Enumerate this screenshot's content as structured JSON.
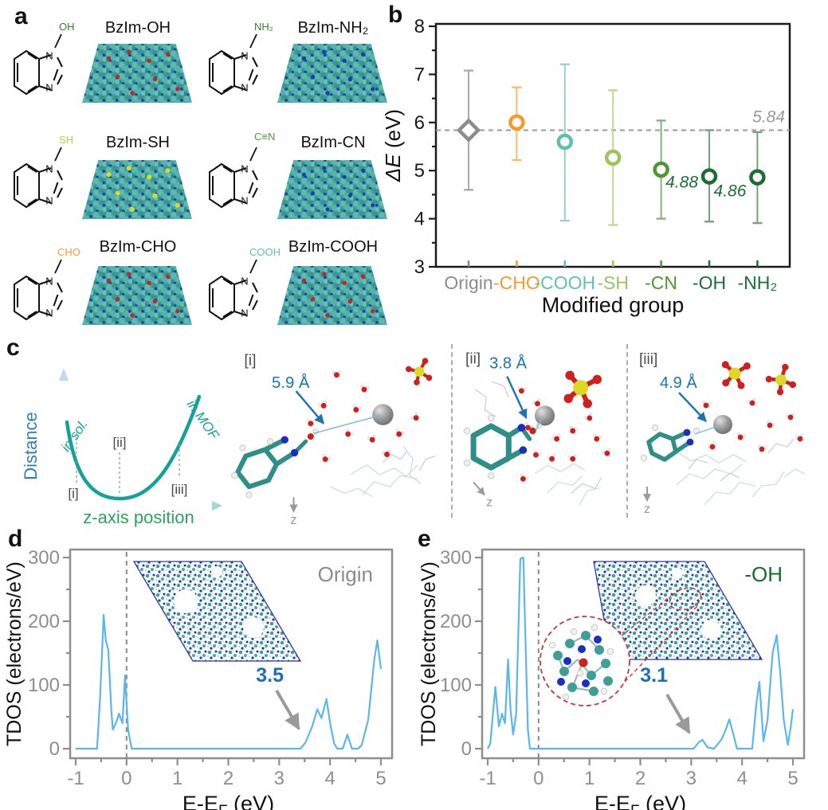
{
  "panel_a": {
    "label": "a",
    "molecules": [
      {
        "name": "BzIm-OH",
        "substituent": "OH",
        "sub_color": "#3a7d2c",
        "accent": "#cf2020"
      },
      {
        "name": "BzIm-NH₂",
        "substituent": "NH₂",
        "sub_color": "#3a7d2c",
        "accent": "#1f3ab0"
      },
      {
        "name": "BzIm-SH",
        "substituent": "SH",
        "sub_color": "#bcc94a",
        "accent": "#e3d820"
      },
      {
        "name": "BzIm-CN",
        "substituent": "C≡N",
        "sub_color": "#4f9733",
        "accent": "#1f3ab0"
      },
      {
        "name": "BzIm-CHO",
        "substituent": "CHO",
        "sub_color": "#f59b2b",
        "accent": "#cf2020"
      },
      {
        "name": "BzIm-COOH",
        "substituent": "COOH",
        "sub_color": "#5fc0af",
        "accent": "#cf2020"
      }
    ]
  },
  "panel_b": {
    "label": "b"
  },
  "panel_c": {
    "label": "c",
    "schematic": {
      "ylabel": "Distance",
      "xlabel": "z-axis position",
      "branch_labels": [
        "in sol.",
        "in MOF"
      ],
      "markers": [
        "[i]",
        "[ii]",
        "[iii]"
      ]
    },
    "snapshots": [
      {
        "tag": "[i]",
        "distance": "5.9 Å"
      },
      {
        "tag": "[ii]",
        "distance": "3.8 Å"
      },
      {
        "tag": "[iii]",
        "distance": "4.9 Å"
      }
    ],
    "z_axis_label": "z"
  },
  "panel_d": {
    "label": "d",
    "title": "Origin",
    "title_color": "#8b8b8b",
    "gap_value": "3.5"
  },
  "panel_e": {
    "label": "e",
    "title": "-OH",
    "title_color": "#1a6b2a",
    "gap_value": "3.1"
  },
  "chart_data": [
    {
      "panel": "b",
      "type": "scatter",
      "categories": [
        "Origin",
        "-CHO",
        "-COOH",
        "-SH",
        "-CN",
        "-OH",
        "-NH₂"
      ],
      "values": [
        5.84,
        6.0,
        5.6,
        5.27,
        5.02,
        4.88,
        4.86
      ],
      "err_low": [
        4.6,
        5.22,
        3.96,
        3.87,
        4.0,
        3.94,
        3.91
      ],
      "err_high": [
        7.08,
        6.73,
        7.21,
        6.67,
        6.04,
        5.84,
        5.8
      ],
      "colors": [
        "#8c8c8c",
        "#f59b2b",
        "#5fc0af",
        "#9cc45c",
        "#4f9733",
        "#1c6e33",
        "#1c6e33"
      ],
      "bar_colors": [
        "#aaaaaa",
        "#f7bb6a",
        "#9ad2c6",
        "#c2d795",
        "#85b277",
        "#74a57a",
        "#74a57a"
      ],
      "markers": [
        "diamond",
        "circle",
        "circle",
        "circle",
        "circle",
        "circle",
        "circle"
      ],
      "ref_line": 5.84,
      "ref_label": "5.84",
      "annotations": [
        {
          "cat": 5,
          "text": "4.88"
        },
        {
          "cat": 6,
          "text": "4.86"
        }
      ],
      "xlabel": "Modified group",
      "ylabel": "ΔE (eV)",
      "ylim": [
        3,
        8
      ],
      "yticks": [
        3,
        4,
        5,
        6,
        7,
        8
      ]
    },
    {
      "panel": "d",
      "type": "line",
      "color": "#5ab7e8",
      "xlabel": "E-E_F (eV)",
      "ylabel": "TDOS (electrons/eV)",
      "xlim": [
        -1,
        5
      ],
      "ylim": [
        0,
        300
      ],
      "xticks": [
        -1,
        0,
        1,
        2,
        3,
        4,
        5
      ],
      "yticks": [
        0,
        100,
        200,
        300
      ],
      "vline": 0,
      "x": [
        -1,
        -0.58,
        -0.52,
        -0.45,
        -0.41,
        -0.36,
        -0.3,
        -0.27,
        -0.2,
        -0.15,
        -0.08,
        -0.03,
        0.03,
        0.1,
        0.5,
        1,
        1.5,
        2,
        2.5,
        3,
        3.42,
        3.52,
        3.65,
        3.75,
        3.83,
        3.93,
        4.0,
        4.08,
        4.14,
        4.25,
        4.34,
        4.43,
        4.55,
        4.62,
        4.75,
        4.87,
        4.93,
        5.0
      ],
      "y": [
        0,
        0,
        80,
        210,
        170,
        155,
        60,
        30,
        42,
        55,
        40,
        115,
        30,
        0,
        0,
        0,
        0,
        0,
        0,
        0,
        0,
        10,
        35,
        62,
        48,
        78,
        40,
        8,
        0,
        0,
        22,
        0,
        0,
        5,
        45,
        140,
        170,
        125
      ]
    },
    {
      "panel": "e",
      "type": "line",
      "color": "#5ab7e8",
      "xlabel": "E-E_F (eV)",
      "ylabel": "TDOS (electrons/eV)",
      "xlim": [
        -1,
        5
      ],
      "ylim": [
        0,
        300
      ],
      "xticks": [
        -1,
        0,
        1,
        2,
        3,
        4,
        5
      ],
      "yticks": [
        0,
        100,
        200,
        300
      ],
      "vline": 0,
      "x": [
        -1,
        -0.95,
        -0.85,
        -0.78,
        -0.72,
        -0.66,
        -0.6,
        -0.55,
        -0.5,
        -0.44,
        -0.36,
        -0.3,
        -0.26,
        -0.21,
        -0.17,
        0,
        0.5,
        1,
        1.5,
        2,
        2.5,
        3.05,
        3.15,
        3.22,
        3.32,
        3.45,
        3.6,
        3.68,
        3.75,
        3.82,
        3.9,
        4.2,
        4.28,
        4.34,
        4.42,
        4.5,
        4.6,
        4.68,
        4.75,
        4.82,
        4.9,
        4.95,
        5.0
      ],
      "y": [
        0,
        8,
        97,
        35,
        55,
        40,
        140,
        60,
        22,
        55,
        298,
        300,
        180,
        30,
        0,
        0,
        0,
        0,
        0,
        0,
        0,
        0,
        10,
        14,
        2,
        0,
        15,
        30,
        46,
        25,
        0,
        0,
        70,
        105,
        12,
        45,
        150,
        178,
        120,
        45,
        6,
        30,
        62
      ]
    }
  ]
}
